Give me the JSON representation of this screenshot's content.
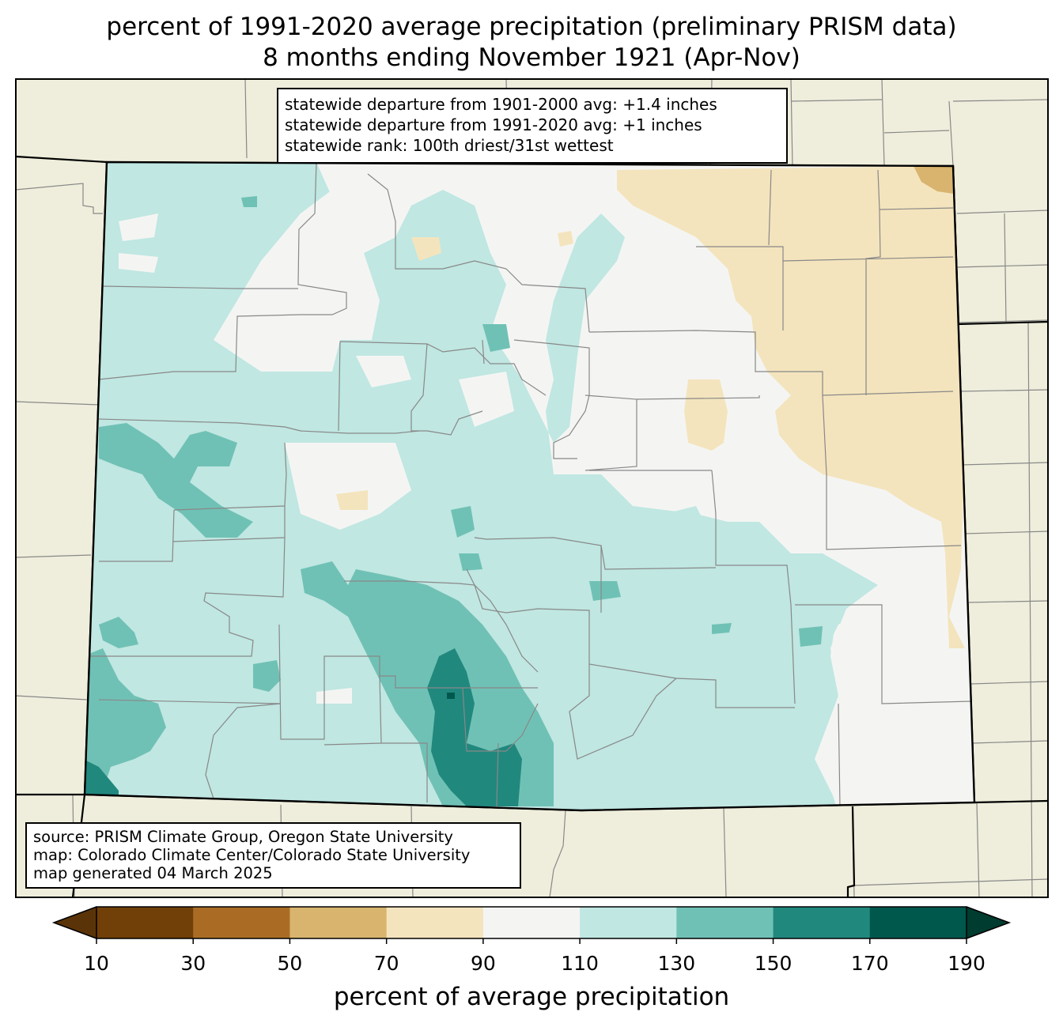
{
  "title": {
    "line1": "percent of 1991-2020 average precipitation (preliminary PRISM data)",
    "line2": "8 months ending November 1921 (Apr-Nov)"
  },
  "stats_box": {
    "line1": "statewide departure from 1901-2000 avg: +1.4 inches",
    "line2": "statewide departure from 1991-2020 avg: +1 inches",
    "line3": "statewide rank: 100th driest/31st wettest"
  },
  "source_box": {
    "line1": "source: PRISM Climate Group, Oregon State University",
    "line2": "map: Colorado Climate Center/Colorado State University",
    "line3": "map generated 04 March 2025"
  },
  "colorbar": {
    "label": "percent of average precipitation",
    "ticks": [
      "10",
      "30",
      "50",
      "70",
      "90",
      "110",
      "130",
      "150",
      "170",
      "190"
    ],
    "colors": [
      "#5a3408",
      "#713f08",
      "#aa6c24",
      "#d8b46e",
      "#f4e4bd",
      "#f4f5f3",
      "#c0e7e2",
      "#70c1b5",
      "#21887e",
      "#00584d",
      "#003c30"
    ]
  },
  "colors": {
    "land_outside": "#efeedc",
    "neutral": "#f4f5f3",
    "wet_110_130": "#c0e7e2",
    "wet_130_150": "#70c1b5",
    "wet_150_170": "#21887e",
    "wet_170_190": "#00584d",
    "dry_70_90": "#f4e4bd",
    "dry_50_70": "#d8b46e"
  }
}
